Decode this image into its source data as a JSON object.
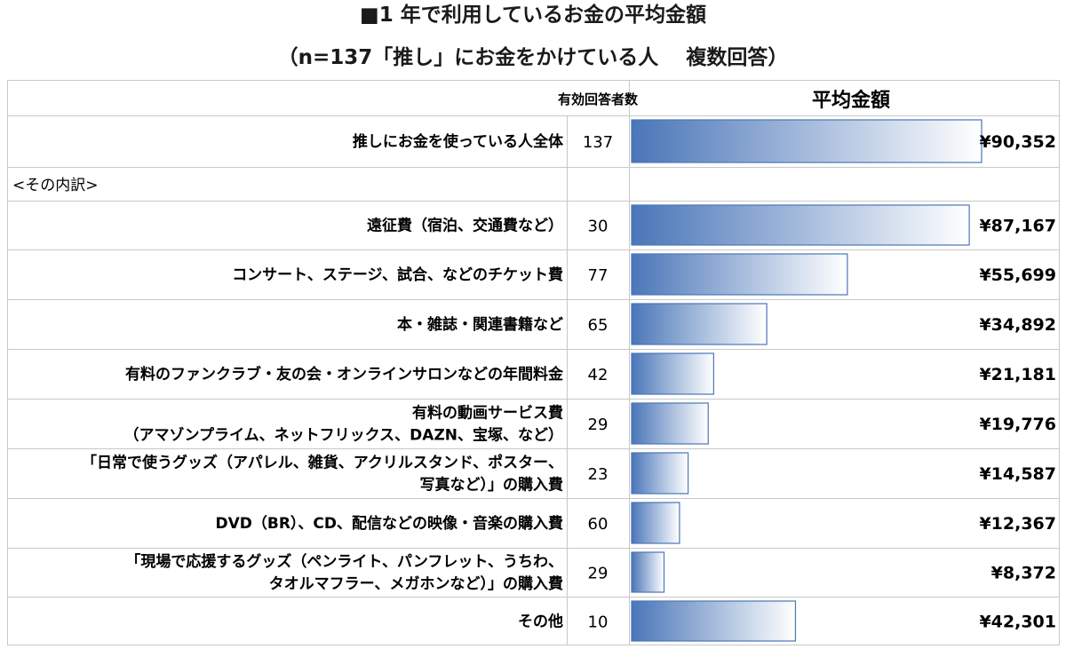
{
  "title_line1": "■1 年で利用しているお金の平均金額",
  "title_line2": "（n=137「推し」にお金をかけている人　 複数回答）",
  "header": {
    "respondents": "有効回答者数",
    "average": "平均金額"
  },
  "section_label": "<その内訳>",
  "colors": {
    "bar_dark": "#4a76b8",
    "bar_light": "#ffffff",
    "bar_border": "#4a76b8",
    "grid": "#c8c8c8"
  },
  "chart_data": {
    "type": "bar",
    "orientation": "horizontal",
    "unit": "¥",
    "rows": [
      {
        "label": [
          "推しにお金を使っている人全体"
        ],
        "n": "137",
        "value": 90352,
        "value_label": "¥90,352"
      },
      {
        "label": [
          "遠征費（宿泊、交通費など）"
        ],
        "n": "30",
        "value": 87167,
        "value_label": "¥87,167"
      },
      {
        "label": [
          "コンサート、ステージ、試合、などのチケット費"
        ],
        "n": "77",
        "value": 55699,
        "value_label": "¥55,699"
      },
      {
        "label": [
          "本・雑誌・関連書籍など"
        ],
        "n": "65",
        "value": 34892,
        "value_label": "¥34,892"
      },
      {
        "label": [
          "有料のファンクラブ・友の会・オンラインサロンなどの年間料金"
        ],
        "n": "42",
        "value": 21181,
        "value_label": "¥21,181"
      },
      {
        "label": [
          "有料の動画サービス費",
          "（アマゾンプライム、ネットフリックス、DAZN、宝塚、など）"
        ],
        "n": "29",
        "value": 19776,
        "value_label": "¥19,776"
      },
      {
        "label": [
          "「日常で使うグッズ（アパレル、雑貨、アクリルスタンド、ポスター、",
          "写真など）」の購入費"
        ],
        "n": "23",
        "value": 14587,
        "value_label": "¥14,587"
      },
      {
        "label": [
          "DVD（BR）、CD、配信などの映像・音楽の購入費"
        ],
        "n": "60",
        "value": 12367,
        "value_label": "¥12,367"
      },
      {
        "label": [
          "「現場で応援するグッズ（ペンライト、パンフレット、うちわ、",
          "タオルマフラー、メガホンなど）」の購入費"
        ],
        "n": "29",
        "value": 8372,
        "value_label": "¥8,372"
      },
      {
        "label": [
          "その他"
        ],
        "n": "10",
        "value": 42301,
        "value_label": "¥42,301"
      }
    ],
    "xlim": [
      0,
      90352
    ]
  }
}
